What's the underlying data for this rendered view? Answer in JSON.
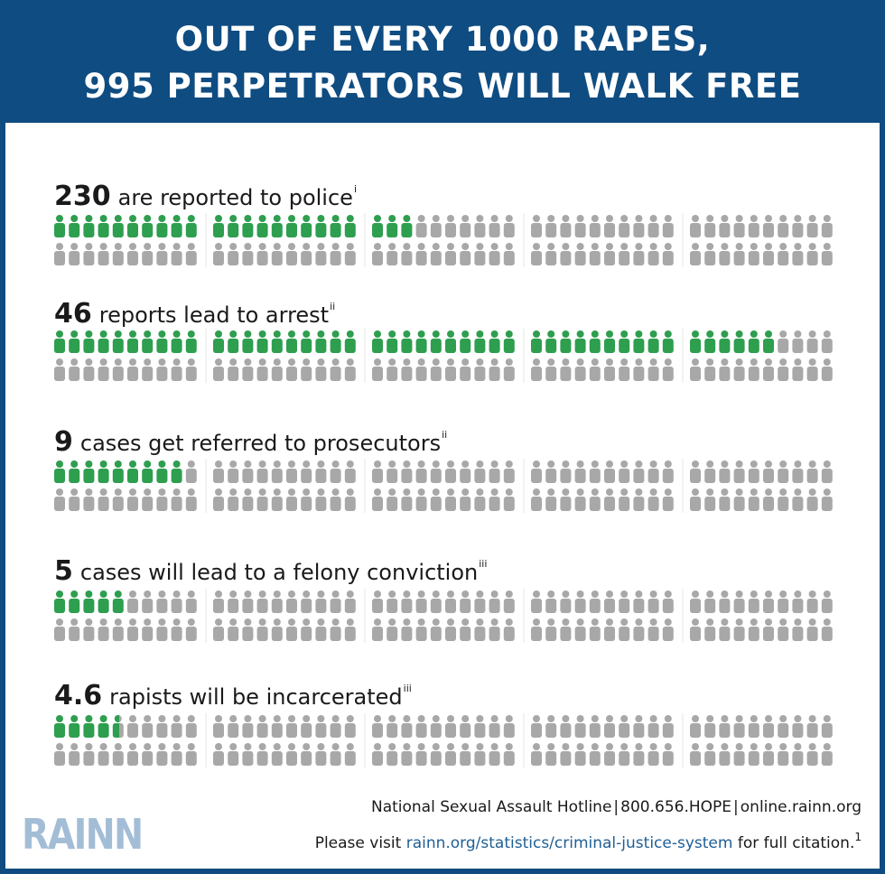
{
  "header": {
    "line1": "OUT OF EVERY 1000 RAPES,",
    "line2": "995 PERPETRATORS WILL WALK FREE"
  },
  "colors": {
    "header_bg": "#0f4c81",
    "highlight": "#2e9e4f",
    "person": "#a8a8a8",
    "logo": "#a3bdd6",
    "link": "#1f5f95"
  },
  "icon": "person-icon",
  "chart_data": {
    "type": "pictogram",
    "total_per_row": 100,
    "rows": [
      {
        "value": 230,
        "value_label": "230",
        "label": "are reported to police",
        "note": "i"
      },
      {
        "value": 46,
        "value_label": "46",
        "label": "reports lead to arrest",
        "note": "ii"
      },
      {
        "value": 9,
        "value_label": "9",
        "label": "cases get referred to prosecutors",
        "note": "ii"
      },
      {
        "value": 5,
        "value_label": "5",
        "label": "cases will lead to a felony conviction",
        "note": "iii"
      },
      {
        "value": 4.6,
        "value_label": "4.6",
        "label": "rapists will be incarcerated",
        "note": "iii"
      }
    ]
  },
  "footer": {
    "hotline": "National Sexual Assault Hotline",
    "phone": "800.656.HOPE",
    "site": "online.rainn.org",
    "separator": "|",
    "visit_prefix": "Please visit",
    "visit_link": "rainn.org/statistics/criminal-justice-system",
    "visit_suffix": "for full citation.",
    "citation_mark": "1",
    "logo": "RAINN"
  }
}
